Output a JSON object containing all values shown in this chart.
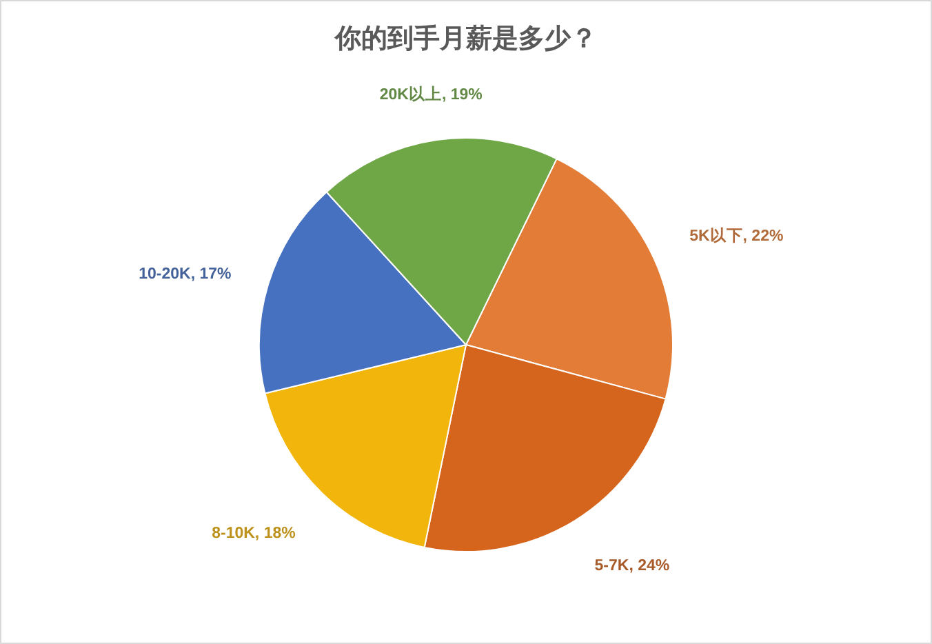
{
  "chart_data": {
    "type": "pie",
    "title": "你的到手月薪是多少？",
    "categories": [
      "5K以下",
      "5-7K",
      "8-10K",
      "10-20K",
      "20K以上"
    ],
    "values": [
      22,
      24,
      18,
      17,
      19
    ],
    "colors": [
      "#e27c36",
      "#d5651d",
      "#f2b50c",
      "#4671c0",
      "#6fa747"
    ],
    "value_labels": [
      "22%",
      "24%",
      "18%",
      "17%",
      "19%"
    ]
  }
}
